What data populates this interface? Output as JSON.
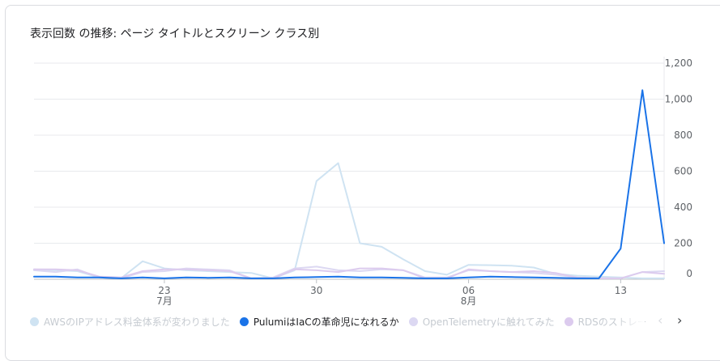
{
  "title": "表示回数 の推移: ページ タイトルとスクリーン クラス別",
  "legend_nav": {
    "prev": "‹",
    "next": "›"
  },
  "chart_data": {
    "type": "line",
    "x_tick_labels": [
      {
        "day": "23",
        "month": "7月",
        "index": 6
      },
      {
        "day": "30",
        "month": "",
        "index": 13
      },
      {
        "day": "06",
        "month": "8月",
        "index": 20
      },
      {
        "day": "13",
        "month": "",
        "index": 27
      }
    ],
    "ylim": [
      0,
      1200
    ],
    "y_ticks": [
      "1,200",
      "1,000",
      "800",
      "600",
      "400",
      "200",
      "0"
    ],
    "y_tick_values": [
      1200,
      1000,
      800,
      600,
      400,
      200,
      0
    ],
    "grid": true,
    "legend_position": "bottom",
    "series": [
      {
        "name": "AWSのIPアドレス料金体系が変わりました",
        "color": "#cfe3f2",
        "active": false,
        "values": [
          55,
          50,
          45,
          10,
          5,
          100,
          60,
          50,
          45,
          40,
          35,
          5,
          50,
          545,
          645,
          200,
          180,
          110,
          45,
          25,
          80,
          78,
          75,
          65,
          30,
          20,
          15,
          10,
          5,
          5
        ]
      },
      {
        "name": "PulumiはIaCの革命児になれるか",
        "color": "#1a73e8",
        "active": true,
        "values": [
          15,
          15,
          10,
          10,
          5,
          10,
          5,
          10,
          8,
          10,
          5,
          5,
          10,
          12,
          15,
          10,
          10,
          8,
          5,
          5,
          10,
          15,
          12,
          10,
          8,
          5,
          5,
          170,
          1050,
          200
        ]
      },
      {
        "name": "OpenTelemetryに触れてみた",
        "color": "#dcd8f2",
        "active": false,
        "values": [
          50,
          40,
          55,
          10,
          5,
          40,
          45,
          60,
          55,
          50,
          5,
          10,
          60,
          70,
          50,
          45,
          55,
          50,
          10,
          10,
          50,
          45,
          40,
          35,
          25,
          10,
          5,
          5,
          40,
          45
        ]
      },
      {
        "name": "RDSのストレージ節約",
        "color": "#dccbee",
        "active": false,
        "values": [
          55,
          55,
          50,
          15,
          10,
          45,
          55,
          55,
          50,
          45,
          5,
          5,
          55,
          50,
          40,
          60,
          60,
          50,
          5,
          5,
          55,
          45,
          40,
          45,
          35,
          10,
          5,
          5,
          40,
          30
        ]
      }
    ]
  }
}
